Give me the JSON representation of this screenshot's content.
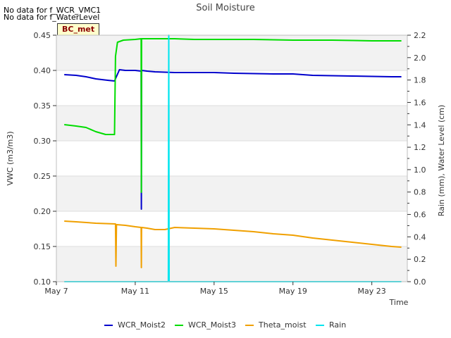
{
  "notes": [
    "No data for f_WCR_VMC1",
    "No data for f_WaterLevel"
  ],
  "badge": "BC_met",
  "chart_data": {
    "type": "line",
    "title": "Soil Moisture",
    "xlabel": "Time",
    "ylabel": "VWC (m3/m3)",
    "y2label": "Rain (mm), Water Level (cm)",
    "xlim": [
      7,
      24.8
    ],
    "ylim": [
      0.1,
      0.45
    ],
    "y2lim": [
      0.0,
      2.2
    ],
    "x_ticks": [
      7,
      11,
      15,
      19,
      23
    ],
    "x_tick_labels": [
      "May 7",
      "May 11",
      "May 15",
      "May 19",
      "May 23"
    ],
    "y_ticks": [
      0.1,
      0.15,
      0.2,
      0.25,
      0.3,
      0.35,
      0.4,
      0.45
    ],
    "y_tick_labels": [
      "0.10",
      "0.15",
      "0.20",
      "0.25",
      "0.30",
      "0.35",
      "0.40",
      "0.45"
    ],
    "y2_ticks": [
      0.0,
      0.2,
      0.4,
      0.6,
      0.8,
      1.0,
      1.2,
      1.4,
      1.6,
      1.8,
      2.0,
      2.2
    ],
    "y2_tick_labels": [
      "0.0",
      "0.2",
      "0.4",
      "0.6",
      "0.8",
      "1.0",
      "1.2",
      "1.4",
      "1.6",
      "1.8",
      "2.0",
      "2.2"
    ],
    "bands": [
      [
        0.1,
        0.15
      ],
      [
        0.2,
        0.25
      ],
      [
        0.3,
        0.35
      ],
      [
        0.4,
        0.45
      ]
    ],
    "legend_position": "bottom",
    "series": [
      {
        "name": "WCR_Moist2",
        "color": "#0000cc",
        "axis": "left",
        "x": [
          7.4,
          8.0,
          8.5,
          9.0,
          9.6,
          9.95,
          10.2,
          10.5,
          11.0,
          11.3,
          11.31,
          11.32,
          11.6,
          12.0,
          13.0,
          14.0,
          15.0,
          16.0,
          18.0,
          19.0,
          20.0,
          22.0,
          24.0,
          24.5
        ],
        "y": [
          0.394,
          0.393,
          0.391,
          0.388,
          0.386,
          0.385,
          0.401,
          0.4,
          0.4,
          0.399,
          0.203,
          0.4,
          0.399,
          0.398,
          0.397,
          0.397,
          0.397,
          0.396,
          0.395,
          0.395,
          0.393,
          0.392,
          0.391,
          0.391
        ]
      },
      {
        "name": "WCR_Moist3",
        "color": "#00dd00",
        "axis": "left",
        "x": [
          7.4,
          8.0,
          8.5,
          9.0,
          9.5,
          9.95,
          10.0,
          10.1,
          10.4,
          11.0,
          11.3,
          11.31,
          11.32,
          12.0,
          13.0,
          14.0,
          15.0,
          17.0,
          19.0,
          21.0,
          23.0,
          24.0,
          24.5
        ],
        "y": [
          0.323,
          0.321,
          0.319,
          0.313,
          0.309,
          0.309,
          0.42,
          0.44,
          0.443,
          0.444,
          0.445,
          0.227,
          0.445,
          0.445,
          0.445,
          0.444,
          0.444,
          0.444,
          0.443,
          0.443,
          0.442,
          0.442,
          0.442
        ]
      },
      {
        "name": "Theta_moist",
        "color": "#f0a000",
        "axis": "left",
        "x": [
          7.4,
          8.0,
          9.0,
          10.0,
          10.02,
          10.05,
          10.5,
          11.0,
          11.3,
          11.31,
          11.32,
          11.6,
          12.0,
          12.5,
          13.0,
          14.0,
          15.0,
          16.0,
          17.0,
          18.0,
          19.0,
          20.0,
          21.0,
          22.0,
          23.0,
          24.0,
          24.5
        ],
        "y": [
          0.186,
          0.185,
          0.183,
          0.182,
          0.122,
          0.181,
          0.18,
          0.178,
          0.177,
          0.12,
          0.177,
          0.176,
          0.174,
          0.174,
          0.177,
          0.176,
          0.175,
          0.173,
          0.171,
          0.168,
          0.166,
          0.162,
          0.159,
          0.156,
          0.153,
          0.15,
          0.149
        ]
      },
      {
        "name": "Rain",
        "color": "#00e5ee",
        "axis": "right",
        "x": [
          7.4,
          12.68,
          12.7,
          12.72,
          24.5
        ],
        "y": [
          0.0,
          0.0,
          2.2,
          0.0,
          0.0
        ]
      }
    ]
  }
}
